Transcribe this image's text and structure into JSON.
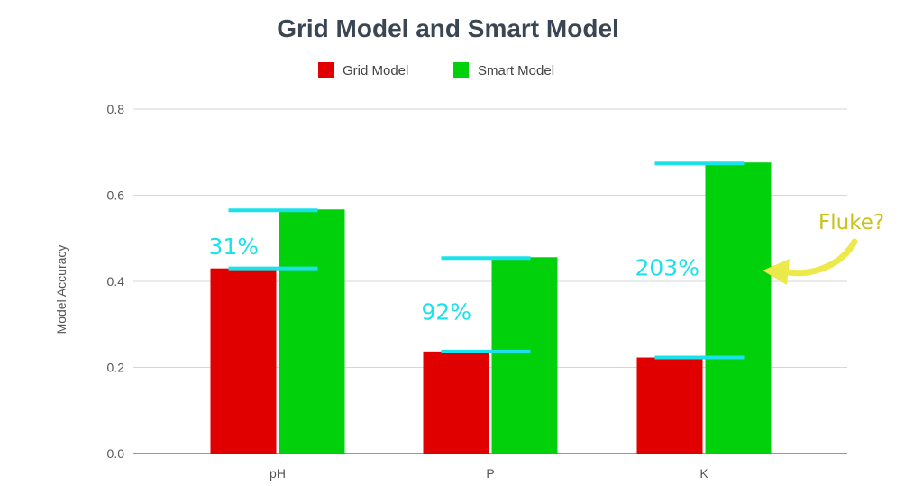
{
  "chart_data": {
    "type": "bar",
    "title": "Grid Model and Smart Model",
    "ylabel": "Model Accuracy",
    "xlabel": "",
    "categories": [
      "pH",
      "P",
      "K"
    ],
    "series": [
      {
        "name": "Grid Model",
        "color": "#e00000",
        "values": [
          0.43,
          0.237,
          0.223
        ]
      },
      {
        "name": "Smart Model",
        "color": "#00d10a",
        "values": [
          0.567,
          0.456,
          0.676
        ]
      }
    ],
    "ylim": [
      0,
      0.8
    ],
    "yticks": [
      "0.0",
      "0.2",
      "0.4",
      "0.6",
      "0.8"
    ],
    "grid": true,
    "legend_position": "top-center",
    "annotations": {
      "increase_labels": [
        "31%",
        "92%",
        "203%"
      ],
      "note": "Fluke?",
      "marker_color": "#19e2ea",
      "note_color": "#c9c21a"
    }
  }
}
